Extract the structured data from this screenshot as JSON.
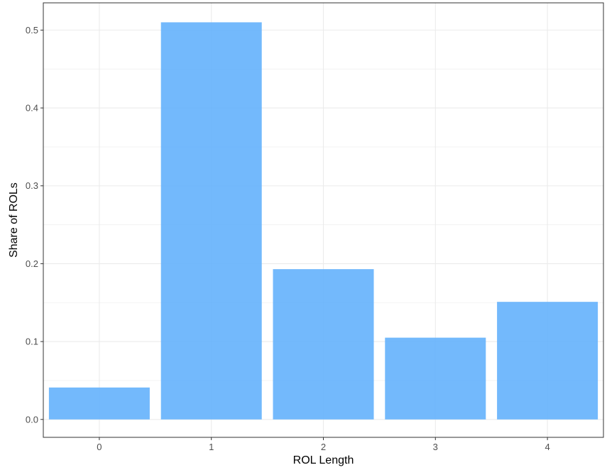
{
  "chart_data": {
    "type": "bar",
    "categories": [
      "0",
      "1",
      "2",
      "3",
      "4"
    ],
    "values": [
      0.041,
      0.51,
      0.193,
      0.105,
      0.151
    ],
    "xlabel": "ROL Length",
    "ylabel": "Share of ROLs",
    "ylim": [
      -0.023,
      0.535
    ],
    "y_ticks": [
      0.0,
      0.1,
      0.2,
      0.3,
      0.4,
      0.5
    ],
    "y_tick_labels": [
      "0.0",
      "0.1",
      "0.2",
      "0.3",
      "0.4",
      "0.5"
    ],
    "grid": true,
    "legend": "none",
    "colors": {
      "bar": "#64b1fc",
      "grid": "#ebebeb",
      "panel_border": "#333333"
    }
  }
}
